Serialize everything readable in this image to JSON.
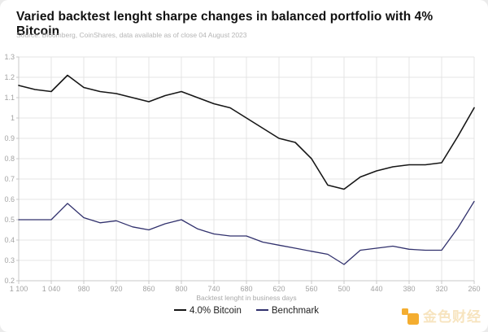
{
  "header": {
    "title": "Varied backtest lenght sharpe changes in balanced portfolio with 4% Bitcoin",
    "source": "Source: Bloomberg, CoinShares, data available as of close 04 August 2023"
  },
  "chart_data": {
    "type": "line",
    "title": "Varied backtest lenght sharpe changes in balanced portfolio with 4% Bitcoin",
    "xlabel": "Backtest lenght in business days",
    "ylabel": "",
    "x_axis_reversed": true,
    "grid": true,
    "legend_position": "bottom",
    "ylim": [
      0.2,
      1.3
    ],
    "y_ticks": [
      0.2,
      0.3,
      0.4,
      0.5,
      0.6,
      0.7,
      0.8,
      0.9,
      1,
      1.1,
      1.2,
      1.3
    ],
    "x_ticks": [
      1100,
      1040,
      980,
      920,
      860,
      800,
      740,
      680,
      620,
      560,
      500,
      440,
      380,
      320,
      260
    ],
    "x": [
      1100,
      1070,
      1040,
      1010,
      980,
      950,
      920,
      890,
      860,
      830,
      800,
      770,
      740,
      710,
      680,
      650,
      620,
      590,
      560,
      530,
      500,
      470,
      440,
      410,
      380,
      350,
      320,
      290,
      260
    ],
    "series": [
      {
        "name": "4.0% Bitcoin",
        "color": "#161616",
        "width": 1.6,
        "values": [
          1.16,
          1.14,
          1.13,
          1.21,
          1.15,
          1.13,
          1.12,
          1.1,
          1.08,
          1.11,
          1.13,
          1.1,
          1.07,
          1.05,
          1.0,
          0.95,
          0.9,
          0.88,
          0.8,
          0.67,
          0.65,
          0.71,
          0.74,
          0.76,
          0.77,
          0.77,
          0.78,
          0.91,
          1.05
        ]
      },
      {
        "name": "Benchmark",
        "color": "#31316d",
        "width": 1.3,
        "values": [
          0.5,
          0.5,
          0.5,
          0.58,
          0.51,
          0.485,
          0.495,
          0.465,
          0.45,
          0.48,
          0.5,
          0.455,
          0.43,
          0.42,
          0.42,
          0.39,
          0.375,
          0.36,
          0.345,
          0.33,
          0.28,
          0.35,
          0.36,
          0.37,
          0.355,
          0.35,
          0.35,
          0.46,
          0.59
        ]
      }
    ],
    "colors": {
      "gridline": "#e4e4e4",
      "axis_line": "#c9c9c9",
      "tick_label": "#a3a3a3"
    }
  },
  "watermark": {
    "text": "金色财经",
    "text_color": "#f7e2ba",
    "icon_color": "#f4a71f",
    "icon": "jinse-blocks"
  }
}
